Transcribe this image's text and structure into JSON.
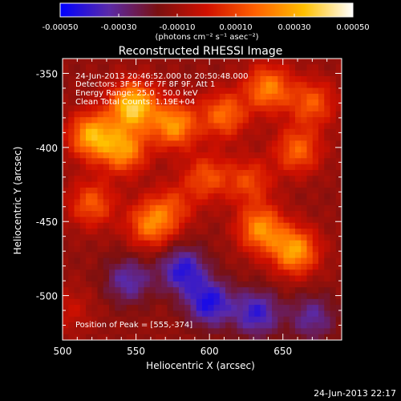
{
  "chart_data": {
    "type": "heatmap",
    "title": "Reconstructed RHESSI Image",
    "xlabel": "Heliocentric X (arcsec)",
    "ylabel": "Heliocentric Y (arcsec)",
    "xlim": [
      500,
      690
    ],
    "ylim": [
      -530,
      -340
    ],
    "x_ticks": [
      500,
      550,
      600,
      650
    ],
    "y_ticks": [
      -350,
      -400,
      -450,
      -500
    ],
    "x_tick_labels": [
      "500",
      "550",
      "600",
      "650"
    ],
    "y_tick_labels": [
      "-350",
      "-400",
      "-450",
      "-500"
    ],
    "colorbar": {
      "range": [
        -0.0005,
        0.0005
      ],
      "ticks": [
        -0.0005,
        -0.0003,
        -0.0001,
        0.0001,
        0.0003,
        0.0005
      ],
      "tick_labels": [
        "-0.00050",
        "-0.00030",
        "-0.00010",
        "0.00010",
        "0.00030",
        "0.00050"
      ],
      "unit_label": "(photons cm⁻² s⁻¹ asec⁻²)",
      "colors": [
        "#0000ff",
        "#5a2aa8",
        "#7a1010",
        "#d01000",
        "#ff6000",
        "#ffc000",
        "#ffffff"
      ]
    },
    "info_lines": [
      "24-Jun-2013 20:46:52.000 to 20:50:48.000",
      "Detectors: 3F 5F 6F 7F 8F 9F, Att 1",
      "Energy Range: 25.0 - 50.0 keV",
      "Clean     Total Counts: 1.19E+04"
    ],
    "peak_label": "Position of Peak = [555,-374]",
    "blobs": [
      {
        "x": 548,
        "y": -372,
        "value": 0.0005
      },
      {
        "x": 520,
        "y": -392,
        "value": 0.00042
      },
      {
        "x": 576,
        "y": -385,
        "value": 0.00038
      },
      {
        "x": 610,
        "y": -378,
        "value": 0.0003
      },
      {
        "x": 640,
        "y": -360,
        "value": 0.00034
      },
      {
        "x": 670,
        "y": -370,
        "value": 0.00026
      },
      {
        "x": 660,
        "y": -402,
        "value": 0.00028
      },
      {
        "x": 598,
        "y": -420,
        "value": 0.00024
      },
      {
        "x": 627,
        "y": -423,
        "value": 0.00022
      },
      {
        "x": 520,
        "y": -438,
        "value": 0.00026
      },
      {
        "x": 560,
        "y": -452,
        "value": 0.00032
      },
      {
        "x": 635,
        "y": -455,
        "value": 0.00036
      },
      {
        "x": 658,
        "y": -470,
        "value": 0.0004
      },
      {
        "x": 542,
        "y": -402,
        "value": 0.00036
      },
      {
        "x": 575,
        "y": -440,
        "value": 0.00018
      },
      {
        "x": 505,
        "y": -510,
        "value": 0.0001
      },
      {
        "x": 600,
        "y": -505,
        "value": -0.00032
      },
      {
        "x": 582,
        "y": -483,
        "value": -0.0003
      },
      {
        "x": 632,
        "y": -512,
        "value": -0.00028
      },
      {
        "x": 545,
        "y": -490,
        "value": -0.00022
      },
      {
        "x": 670,
        "y": -515,
        "value": -0.0002
      }
    ]
  },
  "footer_timestamp": "24-Jun-2013 22:17"
}
